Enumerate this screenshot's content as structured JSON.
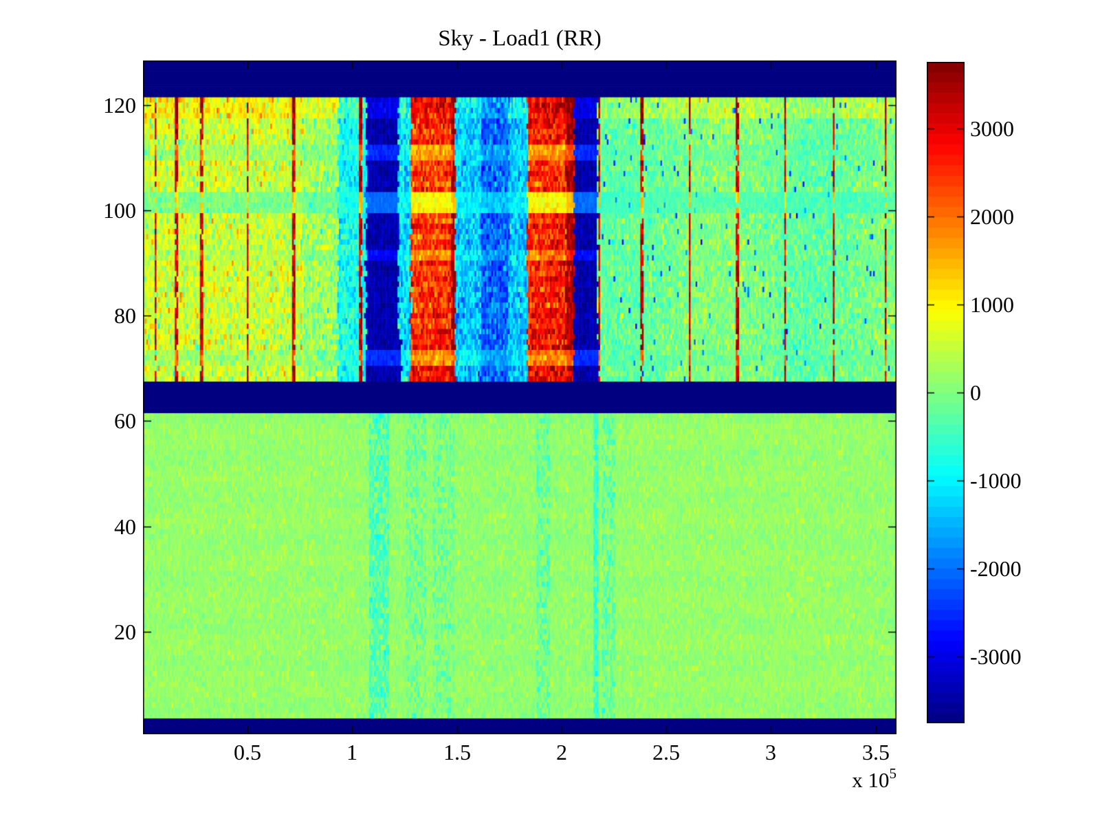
{
  "title": "Sky - Load1 (RR)",
  "chart_data": {
    "type": "heatmap",
    "title": "Sky - Load1 (RR)",
    "x_axis": {
      "range": [
        0,
        3.6
      ],
      "unit_multiplier": 100000,
      "scale_prefix": "x 10",
      "scale_exponent": "5",
      "tick_values": [
        0.5,
        1,
        1.5,
        2,
        2.5,
        3,
        3.5
      ],
      "tick_labels": [
        "0.5",
        "1",
        "1.5",
        "2",
        "2.5",
        "3",
        "3.5"
      ]
    },
    "y_axis": {
      "range": [
        0.5,
        128.5
      ],
      "rows": 128,
      "tick_values": [
        20,
        40,
        60,
        80,
        100,
        120
      ],
      "tick_labels": [
        "20",
        "40",
        "60",
        "80",
        "100",
        "120"
      ]
    },
    "colorbar": {
      "colormap": "jet",
      "levels": 64,
      "clim": [
        -3760,
        3760
      ],
      "tick_values": [
        3000,
        2000,
        1000,
        0,
        -1000,
        -2000,
        -3000
      ],
      "tick_labels": [
        "3000",
        "2000",
        "1000",
        "0",
        "-1000",
        "-2000",
        "-3000"
      ]
    },
    "heatmap_structure": {
      "columns": 450,
      "margin_value": -3760,
      "h_bands": [
        {
          "name": "top-margin",
          "rows": [
            121.5,
            128.5
          ],
          "type": "margin"
        },
        {
          "name": "upper-data",
          "rows": [
            67.5,
            121.5
          ],
          "type": "upper"
        },
        {
          "name": "middle-margin",
          "rows": [
            61.5,
            67.5
          ],
          "type": "margin"
        },
        {
          "name": "lower-data",
          "rows": [
            3.5,
            61.5
          ],
          "type": "lower"
        },
        {
          "name": "bottom-margin",
          "rows": [
            0.5,
            3.5
          ],
          "type": "margin"
        }
      ],
      "upper_band": {
        "base_regions": [
          {
            "name": "background-left",
            "x": [
              0,
              0.76
            ],
            "mean": 560,
            "std": 320,
            "fleck_p": 0.08,
            "fleck_dv": 700,
            "cyan_p": 0.05,
            "cyan_dv": -900
          },
          {
            "name": "background-left2",
            "x": [
              0.76,
              0.93
            ],
            "mean": 330,
            "std": 300,
            "cyan_p": 0.1,
            "cyan_dv": -800
          },
          {
            "name": "cyan-column",
            "x": [
              0.93,
              1.065
            ],
            "mean": -850,
            "std": 380
          },
          {
            "name": "navy-column-1",
            "x": [
              1.065,
              1.22
            ],
            "mean": -3420,
            "std": 180,
            "widen_below": 76,
            "widen_dx": 0.015
          },
          {
            "name": "cyan-gap",
            "x": [
              1.22,
              1.28
            ],
            "mean": -1150,
            "std": 450
          },
          {
            "name": "hot-block-1",
            "x": [
              1.28,
              1.475
            ],
            "mean": 2450,
            "std": 420,
            "block": true
          },
          {
            "name": "hot-block-1-edge",
            "x": [
              1.475,
              1.492
            ],
            "mean": 3400,
            "std": 250,
            "dark_p": 0.3
          },
          {
            "name": "cold-region-a",
            "x": [
              1.492,
              1.615
            ],
            "mean": -1350,
            "std": 430
          },
          {
            "name": "cold-region-core",
            "x": [
              1.615,
              1.75
            ],
            "mean": -2100,
            "std": 400
          },
          {
            "name": "cold-region-b",
            "x": [
              1.75,
              1.838
            ],
            "mean": -1350,
            "std": 430
          },
          {
            "name": "hot-block-2",
            "x": [
              1.838,
              2.02
            ],
            "mean": 2600,
            "std": 430,
            "block": true
          },
          {
            "name": "hot-block-2-edge",
            "x": [
              2.02,
              2.06
            ],
            "mean": 3250,
            "std": 350,
            "dark_p": 0.3
          },
          {
            "name": "navy-column-2",
            "x": [
              2.06,
              2.17
            ],
            "mean": -3420,
            "std": 180,
            "widen_below": 76,
            "widen_dx": 0.012
          },
          {
            "name": "background-right",
            "x": [
              2.17,
              3.6
            ],
            "mean": -140,
            "std": 260,
            "fleck_p": 0.1,
            "fleck_dv": 550,
            "dark_fleck_p": 0.012,
            "dark_fleck_dv": -2200,
            "wave": true
          }
        ],
        "red_lines": {
          "x_positions": [
            0.06,
            0.16,
            0.28,
            0.5,
            0.72,
            1.04,
            2.18,
            2.385,
            2.61,
            2.84,
            3.07,
            3.3,
            3.55
          ],
          "half_width": 0.0055,
          "p": 0.85,
          "mean": 3150,
          "std": 300,
          "dark_p": 0.22,
          "dark_value": 3720
        },
        "row_stripes": [
          {
            "rows": [
              100,
              103
            ],
            "target": -650,
            "mix": 0.5
          },
          {
            "rows": [
              110,
              112
            ],
            "target": -450,
            "mix": 0.3
          },
          {
            "rows": [
              91,
              92
            ],
            "target": -350,
            "mix": 0.2
          },
          {
            "rows": [
              71,
              73
            ],
            "target": -450,
            "mix": 0.3
          }
        ],
        "top_rows_boost": {
          "from_row": 118,
          "delta": 420
        },
        "hot_block_row_gradient": {
          "below_row": 82,
          "delta_per_row": 30,
          "max": 700
        },
        "hot_block_row_banding": {
          "period": 1.9,
          "amplitude": 260
        }
      },
      "lower_band": {
        "base": {
          "mean": 140,
          "std": 115
        },
        "fleck": {
          "p": 0.05,
          "dv": 300
        },
        "row_wave_amplitude": 35,
        "col_wave_amplitude": 25,
        "stripes": [
          {
            "x": [
              1.08,
              1.18
            ],
            "mean": -430,
            "std": 230,
            "p": 0.75
          },
          {
            "x": [
              1.255,
              1.35
            ],
            "mean": -260,
            "std": 200,
            "p": 0.5
          },
          {
            "x": [
              1.385,
              1.485
            ],
            "mean": -240,
            "std": 180,
            "p": 0.45
          },
          {
            "x": [
              1.878,
              1.945
            ],
            "mean": -300,
            "std": 200,
            "p": 0.55
          },
          {
            "x": [
              2.155,
              2.175
            ],
            "mean": -550,
            "std": 200,
            "p": 0.9
          },
          {
            "x": [
              2.19,
              2.26
            ],
            "mean": -350,
            "std": 200,
            "p": 0.5
          }
        ]
      }
    },
    "layout_hints": {
      "grid": false,
      "box": true,
      "tick_direction": "in",
      "colorbar_position": "right",
      "background_color": "#ffffff",
      "margin_band_color": "#000080"
    }
  }
}
